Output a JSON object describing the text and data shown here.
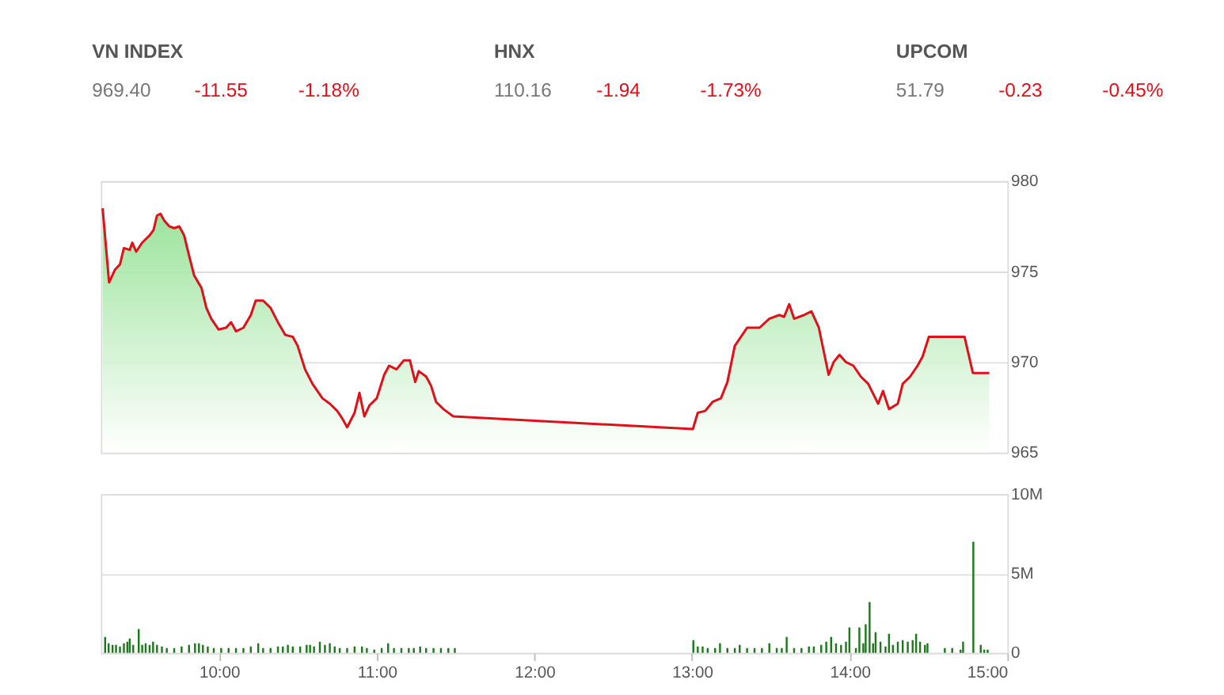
{
  "chart_data": [
    {
      "type": "area",
      "annotations": [
        "VN INDEX",
        "969.40",
        "-11.55",
        "-1.18%",
        "HNX",
        "110.16",
        "-1.94",
        "-1.73%",
        "UPCOM",
        "51.79",
        "-0.23",
        "-0.45%"
      ],
      "xlim": [
        9.25,
        15.0
      ],
      "ylim": [
        965,
        980
      ],
      "yticks": [
        965,
        970,
        975,
        980
      ],
      "grid": "y",
      "tick_labels": "y",
      "x": [
        9.261,
        9.302,
        9.339,
        9.371,
        9.396,
        9.433,
        9.449,
        9.474,
        9.512,
        9.559,
        9.584,
        9.606,
        9.628,
        9.653,
        9.684,
        9.715,
        9.747,
        9.778,
        9.809,
        9.841,
        9.888,
        9.919,
        9.95,
        9.997,
        10.044,
        10.076,
        10.107,
        10.154,
        10.201,
        10.232,
        10.279,
        10.326,
        10.373,
        10.42,
        10.467,
        10.498,
        10.545,
        10.592,
        10.655,
        10.702,
        10.749,
        10.78,
        10.812,
        10.859,
        10.89,
        10.921,
        10.953,
        11.0,
        11.047,
        11.078,
        11.125,
        11.172,
        11.21,
        11.244,
        11.266,
        11.313,
        11.344,
        11.376,
        11.423,
        11.485,
        13.005,
        13.036,
        13.083,
        13.13,
        13.183,
        13.224,
        13.271,
        13.318,
        13.349,
        13.381,
        13.428,
        13.49,
        13.553,
        13.584,
        13.616,
        13.647,
        13.71,
        13.757,
        13.804,
        13.835,
        13.866,
        13.898,
        13.935,
        13.976,
        14.023,
        14.07,
        14.117,
        14.18,
        14.211,
        14.249,
        14.305,
        14.336,
        14.383,
        14.43,
        14.462,
        14.502,
        14.728,
        14.781,
        14.885
      ],
      "series": [
        {
          "color": "#e0101a",
          "values": [
            978.5,
            974.4,
            975.1,
            975.4,
            976.3,
            976.2,
            976.6,
            976.1,
            976.6,
            977.0,
            977.3,
            978.1,
            978.2,
            977.8,
            977.5,
            977.4,
            977.5,
            977.0,
            975.9,
            974.8,
            974.1,
            973.0,
            972.4,
            971.8,
            971.9,
            972.2,
            971.7,
            971.9,
            972.6,
            973.4,
            973.4,
            973.0,
            972.2,
            971.5,
            971.4,
            970.9,
            969.6,
            968.8,
            968.0,
            967.7,
            967.3,
            966.9,
            966.4,
            967.2,
            968.3,
            967.0,
            967.6,
            968.0,
            969.3,
            969.8,
            969.6,
            970.1,
            970.1,
            968.9,
            969.5,
            969.2,
            968.7,
            967.8,
            967.4,
            967.0,
            966.3,
            967.2,
            967.3,
            967.8,
            968.0,
            968.9,
            970.9,
            971.5,
            971.9,
            971.9,
            971.9,
            972.4,
            972.6,
            972.5,
            973.2,
            972.4,
            972.6,
            972.8,
            971.9,
            970.6,
            969.3,
            970.0,
            970.4,
            970.0,
            969.8,
            969.2,
            968.8,
            967.7,
            968.4,
            967.4,
            967.7,
            968.8,
            969.2,
            969.8,
            970.3,
            971.4,
            971.4,
            969.4,
            969.4
          ]
        }
      ]
    },
    {
      "type": "bar",
      "xlim": [
        9.25,
        15.0
      ],
      "ylim": [
        0,
        10
      ],
      "yticks": [
        0,
        {
          "value": 5,
          "label": "5M"
        },
        {
          "value": 10,
          "label": "10M"
        }
      ],
      "xticks": [
        {
          "value": 10,
          "label": "10:00"
        },
        {
          "value": 11,
          "label": "11:00"
        },
        {
          "value": 12,
          "label": "12:00"
        },
        {
          "value": 13,
          "label": "13:00"
        },
        {
          "value": 14,
          "label": "14:00"
        },
        {
          "value": 15,
          "label": "15:00"
        }
      ],
      "grid": "y",
      "x": [
        9.277,
        9.299,
        9.324,
        9.346,
        9.371,
        9.396,
        9.418,
        9.433,
        9.455,
        9.49,
        9.512,
        9.534,
        9.559,
        9.581,
        9.606,
        9.637,
        9.668,
        9.715,
        9.762,
        9.809,
        9.847,
        9.872,
        9.897,
        9.928,
        9.966,
        10.013,
        10.06,
        10.107,
        10.154,
        10.201,
        10.248,
        10.279,
        10.326,
        10.373,
        10.404,
        10.436,
        10.467,
        10.514,
        10.555,
        10.577,
        10.602,
        10.639,
        10.671,
        10.702,
        10.733,
        10.765,
        10.812,
        10.859,
        10.906,
        10.937,
        10.984,
        11.031,
        11.072,
        11.109,
        11.156,
        11.203,
        11.235,
        11.275,
        11.313,
        11.36,
        11.407,
        11.454,
        11.495,
        13.008,
        13.036,
        13.067,
        13.099,
        13.146,
        13.177,
        13.224,
        13.271,
        13.302,
        13.349,
        13.396,
        13.443,
        13.49,
        13.537,
        13.569,
        13.6,
        13.647,
        13.694,
        13.741,
        13.772,
        13.819,
        13.851,
        13.882,
        13.913,
        13.945,
        13.976,
        13.998,
        14.039,
        14.061,
        14.086,
        14.101,
        14.126,
        14.148,
        14.164,
        14.195,
        14.227,
        14.249,
        14.274,
        14.305,
        14.336,
        14.368,
        14.399,
        14.421,
        14.446,
        14.477,
        14.493,
        14.603,
        14.65,
        14.703,
        14.719,
        14.784,
        14.831,
        14.853,
        14.875
      ],
      "series": [
        {
          "color": "#1a7a1a",
          "values": [
            1.0,
            0.6,
            0.5,
            0.5,
            0.4,
            0.6,
            0.7,
            0.9,
            0.5,
            1.5,
            0.5,
            0.6,
            0.5,
            0.7,
            0.5,
            0.4,
            0.3,
            0.3,
            0.4,
            0.5,
            0.6,
            0.6,
            0.5,
            0.4,
            0.3,
            0.3,
            0.3,
            0.3,
            0.3,
            0.4,
            0.6,
            0.3,
            0.3,
            0.4,
            0.4,
            0.5,
            0.4,
            0.4,
            0.5,
            0.5,
            0.4,
            0.7,
            0.5,
            0.6,
            0.4,
            0.3,
            0.3,
            0.4,
            0.4,
            0.3,
            0.2,
            0.3,
            0.6,
            0.3,
            0.3,
            0.3,
            0.3,
            0.4,
            0.3,
            0.3,
            0.3,
            0.3,
            0.3,
            0.8,
            0.4,
            0.4,
            0.3,
            0.3,
            0.6,
            0.3,
            0.3,
            0.5,
            0.3,
            0.3,
            0.3,
            0.6,
            0.3,
            0.3,
            1.0,
            0.3,
            0.3,
            0.4,
            0.4,
            0.5,
            0.7,
            1.0,
            0.6,
            0.5,
            0.7,
            1.6,
            0.3,
            1.6,
            0.6,
            1.8,
            3.2,
            0.6,
            1.3,
            0.7,
            0.4,
            1.2,
            0.5,
            0.7,
            0.8,
            0.7,
            0.8,
            1.2,
            0.7,
            0.5,
            0.6,
            0.3,
            0.3,
            0.2,
            0.7,
            7.0,
            0.5,
            0.2,
            0.2
          ]
        }
      ]
    }
  ]
}
